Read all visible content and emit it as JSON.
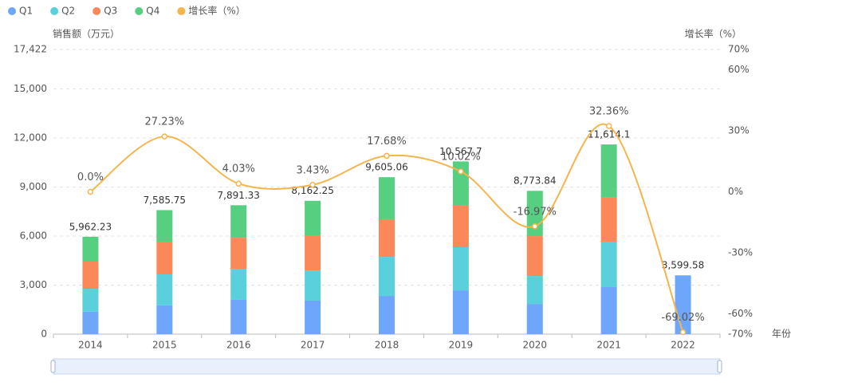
{
  "chart_data": {
    "type": "bar",
    "categories": [
      "2014",
      "2015",
      "2016",
      "2017",
      "2018",
      "2019",
      "2020",
      "2021",
      "2022"
    ],
    "x_label": "年份",
    "y_label": "销售额（万元）",
    "y2_label": "增长率（%）",
    "ylim": [
      0,
      17422
    ],
    "yticks": [
      0,
      {
        "value": 3000,
        "label": "3,000"
      },
      {
        "value": 6000,
        "label": "6,000"
      },
      {
        "value": 9000,
        "label": "9,000"
      },
      {
        "value": 12000,
        "label": "12,000"
      },
      {
        "value": 15000,
        "label": "15,000"
      },
      {
        "value": 17422,
        "label": "17,422"
      }
    ],
    "y2lim": [
      -70,
      70
    ],
    "y2ticks": [
      {
        "value": -70,
        "label": "-70%"
      },
      {
        "value": -60,
        "label": "-60%"
      },
      {
        "value": -30,
        "label": "-30%"
      },
      {
        "value": 0,
        "label": "0%"
      },
      {
        "value": 30,
        "label": "30%"
      },
      {
        "value": 60,
        "label": "60%"
      },
      {
        "value": 70,
        "label": "70%"
      }
    ],
    "grid": true,
    "series": [
      {
        "name": "Q1",
        "color": "#6ea6fb",
        "values": [
          1370,
          1760,
          2100,
          2050,
          2340,
          2680,
          1850,
          2880,
          3599.58
        ]
      },
      {
        "name": "Q2",
        "color": "#5bd0dd",
        "values": [
          1410,
          1900,
          1900,
          1850,
          2390,
          2640,
          1710,
          2780,
          null
        ]
      },
      {
        "name": "Q3",
        "color": "#fb8858",
        "values": [
          1660,
          2000,
          1900,
          2150,
          2300,
          2540,
          2440,
          2690,
          null
        ]
      },
      {
        "name": "Q4",
        "color": "#57cf80",
        "values": [
          1522,
          1930,
          1990,
          2110,
          2575,
          2710,
          2770,
          3260,
          null
        ]
      },
      {
        "name": "增长率（%）",
        "type": "line",
        "axis": "y2",
        "color": "#f5b54c",
        "values": [
          0,
          27.23,
          4.03,
          3.43,
          17.68,
          10.02,
          -16.97,
          32.36,
          -69.02
        ],
        "value_labels": [
          "0.0%",
          "27.23%",
          "4.03%",
          "3.43%",
          "17.68%",
          "10.02%",
          "-16.97%",
          "32.36%",
          "-69.02%"
        ]
      }
    ],
    "totals": {
      "values": [
        5962.23,
        7585.75,
        7891.33,
        8162.25,
        9605.06,
        10567.7,
        8773.84,
        11614.1,
        3599.58
      ],
      "value_labels": [
        "5,962.23",
        "7,585.75",
        "7,891.33",
        "8,162.25",
        "9,605.06",
        "10,567.7",
        "8,773.84",
        "11,614.1",
        "3,599.58"
      ]
    }
  }
}
